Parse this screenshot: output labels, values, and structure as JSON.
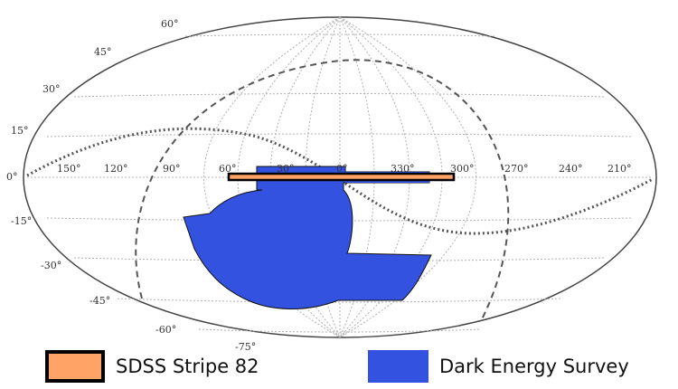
{
  "projection": "Aitoff-Hammer all-sky (equatorial)",
  "ra_labels": [
    "150°",
    "120°",
    "90°",
    "60°",
    "30°",
    "0°",
    "330°",
    "300°",
    "270°",
    "240°",
    "210°"
  ],
  "dec_labels": [
    "60°",
    "45°",
    "30°",
    "15°",
    "0°",
    "-15°",
    "-30°",
    "-45°",
    "-60°",
    "-75°"
  ],
  "legend": {
    "stripe82": {
      "label": "SDSS Stripe 82",
      "color": "#ffa366",
      "border": "#000000"
    },
    "des": {
      "label": "Dark Energy Survey",
      "color": "#3352e0"
    }
  },
  "colors": {
    "outline": "#444444",
    "grid": "#aaaaaa",
    "galactic_plane": "#555555",
    "ecliptic": "#555555"
  }
}
